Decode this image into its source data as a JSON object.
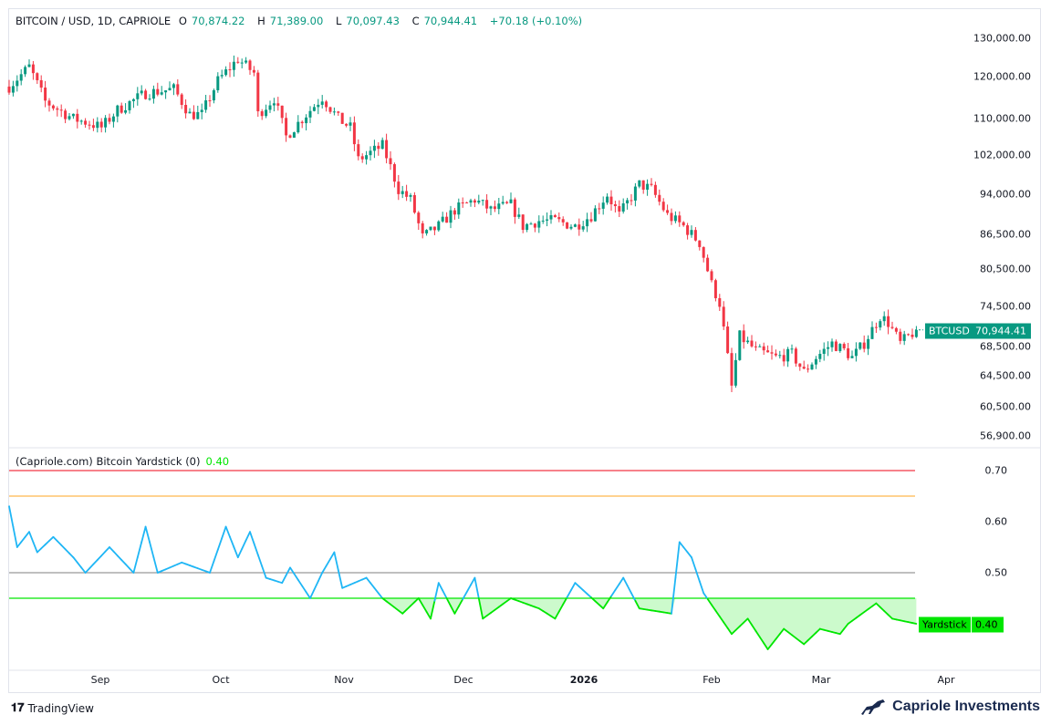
{
  "header": {
    "symbol": "BITCOIN / USD, 1D, CAPRIOLE",
    "open_label": "O",
    "open": "70,874.22",
    "high_label": "H",
    "high": "71,389.00",
    "low_label": "L",
    "low": "70,097.43",
    "close_label": "C",
    "close": "70,944.41",
    "change": "+70.18 (+0.10%)"
  },
  "indicator": {
    "title": "(Capriole.com) Bitcoin Yardstick (0)",
    "value": "0.40"
  },
  "price_axis": [
    "130,000.00",
    "120,000.00",
    "110,000.00",
    "102,000.00",
    "94,000.00",
    "86,500.00",
    "80,500.00",
    "74,500.00",
    "68,500.00",
    "64,500.00",
    "60,500.00",
    "56,900.00"
  ],
  "indicator_axis": [
    "0.70",
    "0.60",
    "0.50"
  ],
  "time_axis": [
    "Sep",
    "Oct",
    "Nov",
    "Dec",
    "2026",
    "Feb",
    "Mar",
    "Apr"
  ],
  "price_tag": {
    "label": "BTCUSD",
    "value": "70,944.41"
  },
  "indicator_tag": {
    "label": "Yardstick",
    "value": "0.40"
  },
  "footer": {
    "left": "TradingView",
    "right": "Capriole Investments"
  },
  "colors": {
    "up": "#089981",
    "down": "#f23645",
    "yardstick_high": "#1fb6f5",
    "yardstick_low": "#00e600",
    "level_red": "#f23645",
    "level_orange": "#ffb74d",
    "level_gray": "#999999",
    "level_green": "#00e600"
  },
  "chart_data": [
    {
      "type": "candlestick",
      "title": "BITCOIN / USD, 1D",
      "scale": "log",
      "ylim": [
        56900,
        130000
      ],
      "x_unit": "days since Aug 9 2025",
      "close_keypoints": [
        [
          0,
          117600
        ],
        [
          5,
          122500
        ],
        [
          9,
          114000
        ],
        [
          16,
          110000
        ],
        [
          20,
          109000
        ],
        [
          23,
          108000
        ],
        [
          27,
          112000
        ],
        [
          34,
          116000
        ],
        [
          41,
          117000
        ],
        [
          45,
          111000
        ],
        [
          48,
          111000
        ],
        [
          52,
          119000
        ],
        [
          57,
          124500
        ],
        [
          61,
          121000
        ],
        [
          62,
          111000
        ],
        [
          66,
          114800
        ],
        [
          69,
          106000
        ],
        [
          73,
          110000
        ],
        [
          78,
          115000
        ],
        [
          82,
          110000
        ],
        [
          85,
          108000
        ],
        [
          87,
          101000
        ],
        [
          91,
          103000
        ],
        [
          93,
          104000
        ],
        [
          97,
          95000
        ],
        [
          100,
          93000
        ],
        [
          103,
          86000
        ],
        [
          107,
          88000
        ],
        [
          111,
          91000
        ],
        [
          116,
          93000
        ],
        [
          120,
          91000
        ],
        [
          125,
          92000
        ],
        [
          128,
          88000
        ],
        [
          132,
          89000
        ],
        [
          136,
          89000
        ],
        [
          141,
          88000
        ],
        [
          145,
          90000
        ],
        [
          149,
          94000
        ],
        [
          152,
          90000
        ],
        [
          157,
          96000
        ],
        [
          160,
          95000
        ],
        [
          164,
          90000
        ],
        [
          168,
          88000
        ],
        [
          172,
          85000
        ],
        [
          175,
          78000
        ],
        [
          177,
          75000
        ],
        [
          180,
          63000
        ],
        [
          182,
          70000
        ],
        [
          186,
          68000
        ],
        [
          191,
          67000
        ],
        [
          195,
          67500
        ],
        [
          198,
          65000
        ],
        [
          201,
          67000
        ],
        [
          205,
          69000
        ],
        [
          208,
          68000
        ],
        [
          210,
          67000
        ],
        [
          213,
          69000
        ],
        [
          217,
          73000
        ],
        [
          219,
          72000
        ],
        [
          222,
          69000
        ],
        [
          226,
          70944
        ]
      ]
    },
    {
      "type": "line",
      "title": "Bitcoin Yardstick",
      "ylim": [
        0.3,
        0.75
      ],
      "levels": [
        0.7,
        0.65,
        0.5,
        0.45
      ],
      "x_unit": "days since Aug 9 2025",
      "keypoints": [
        [
          0,
          0.63
        ],
        [
          2,
          0.55
        ],
        [
          5,
          0.58
        ],
        [
          7,
          0.54
        ],
        [
          11,
          0.57
        ],
        [
          16,
          0.53
        ],
        [
          19,
          0.5
        ],
        [
          25,
          0.55
        ],
        [
          31,
          0.5
        ],
        [
          34,
          0.59
        ],
        [
          37,
          0.5
        ],
        [
          43,
          0.52
        ],
        [
          50,
          0.5
        ],
        [
          54,
          0.59
        ],
        [
          57,
          0.53
        ],
        [
          60,
          0.58
        ],
        [
          64,
          0.49
        ],
        [
          68,
          0.48
        ],
        [
          70,
          0.51
        ],
        [
          75,
          0.45
        ],
        [
          78,
          0.5
        ],
        [
          81,
          0.54
        ],
        [
          83,
          0.47
        ],
        [
          89,
          0.49
        ],
        [
          93,
          0.45
        ],
        [
          98,
          0.42
        ],
        [
          102,
          0.45
        ],
        [
          105,
          0.41
        ],
        [
          107,
          0.48
        ],
        [
          111,
          0.42
        ],
        [
          116,
          0.49
        ],
        [
          118,
          0.41
        ],
        [
          125,
          0.45
        ],
        [
          132,
          0.43
        ],
        [
          136,
          0.41
        ],
        [
          141,
          0.48
        ],
        [
          148,
          0.43
        ],
        [
          153,
          0.49
        ],
        [
          157,
          0.43
        ],
        [
          165,
          0.42
        ],
        [
          167,
          0.56
        ],
        [
          170,
          0.53
        ],
        [
          173,
          0.46
        ],
        [
          180,
          0.38
        ],
        [
          184,
          0.41
        ],
        [
          189,
          0.35
        ],
        [
          193,
          0.39
        ],
        [
          198,
          0.36
        ],
        [
          202,
          0.39
        ],
        [
          207,
          0.38
        ],
        [
          209,
          0.4
        ],
        [
          216,
          0.44
        ],
        [
          220,
          0.41
        ],
        [
          226,
          0.4
        ]
      ]
    }
  ]
}
